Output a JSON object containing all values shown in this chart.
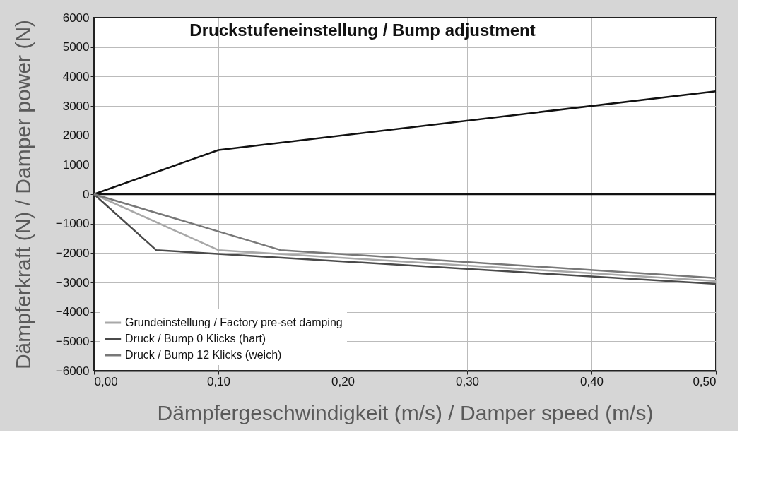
{
  "chart_data": {
    "type": "line",
    "title": "Druckstufeneinstellung / Bump adjustment",
    "xlabel": "Dämpfergeschwindigkeit (m/s) / Damper speed (m/s)",
    "ylabel": "Dämpferkraft (N) / Damper power (N)",
    "series": [
      {
        "color": "#111111",
        "x": [
          0,
          0.1,
          0.5
        ],
        "values": [
          0,
          1500,
          3500
        ]
      },
      {
        "name": "Grundeinstellung / Factory pre-set damping",
        "color": "#a8a8a8",
        "x": [
          0,
          0.1,
          0.5
        ],
        "values": [
          0,
          -1900,
          -2950
        ]
      },
      {
        "name": "Druck / Bump 0 Klicks (hart)",
        "color": "#4a4a4a",
        "x": [
          0,
          0.05,
          0.5
        ],
        "values": [
          0,
          -1900,
          -3050
        ]
      },
      {
        "name": "Druck / Bump 12 Klicks (weich)",
        "color": "#787878",
        "x": [
          0,
          0.15,
          0.5
        ],
        "values": [
          0,
          -1900,
          -2850
        ]
      }
    ],
    "xlim": [
      0,
      0.5
    ],
    "xticks": [
      {
        "value": 0,
        "label": "0,00"
      },
      {
        "value": 0.1,
        "label": "0,10"
      },
      {
        "value": 0.2,
        "label": "0,20"
      },
      {
        "value": 0.3,
        "label": "0,30"
      },
      {
        "value": 0.4,
        "label": "0,40"
      },
      {
        "value": 0.5,
        "label": "0,50"
      }
    ],
    "ylim": [
      -6000,
      6000
    ],
    "yticks": [
      -6000,
      -5000,
      -4000,
      -3000,
      -2000,
      -1000,
      0,
      1000,
      2000,
      3000,
      4000,
      5000,
      6000
    ],
    "ref_lines": [
      {
        "axis": "y",
        "value": 0,
        "color": "#111111"
      }
    ],
    "grid": true,
    "legend": "bottom left",
    "marker": "none",
    "line_style": "solid"
  }
}
